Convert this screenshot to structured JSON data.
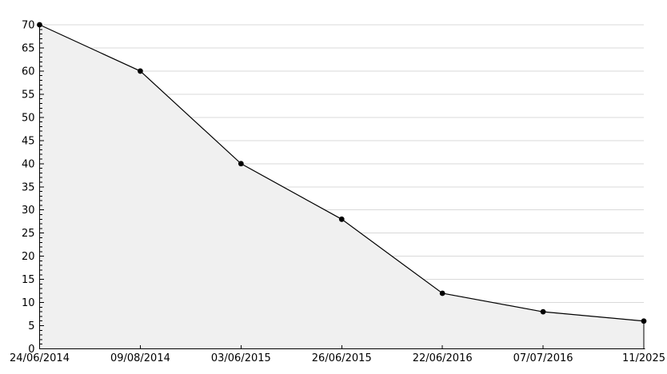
{
  "chart_data": {
    "type": "area",
    "categories": [
      "24/06/2014",
      "09/08/2014",
      "03/06/2015",
      "26/06/2015",
      "22/06/2016",
      "07/07/2016",
      "11/2025"
    ],
    "values": [
      70,
      60,
      40,
      28,
      12,
      8,
      6
    ],
    "title": "",
    "xlabel": "",
    "ylabel": "",
    "ylim": [
      0,
      70
    ],
    "y_tick_step": 5,
    "y_minor_tick_step": 1,
    "grid": true,
    "legend": false,
    "marker": "point",
    "colors": {
      "line": "#000000",
      "marker": "#000000",
      "area_fill": "#f0f0f0",
      "gridline": "#d9d9d9",
      "axis": "#000000",
      "tick": "#000000",
      "label_text": "#000000",
      "background": "#ffffff"
    }
  }
}
